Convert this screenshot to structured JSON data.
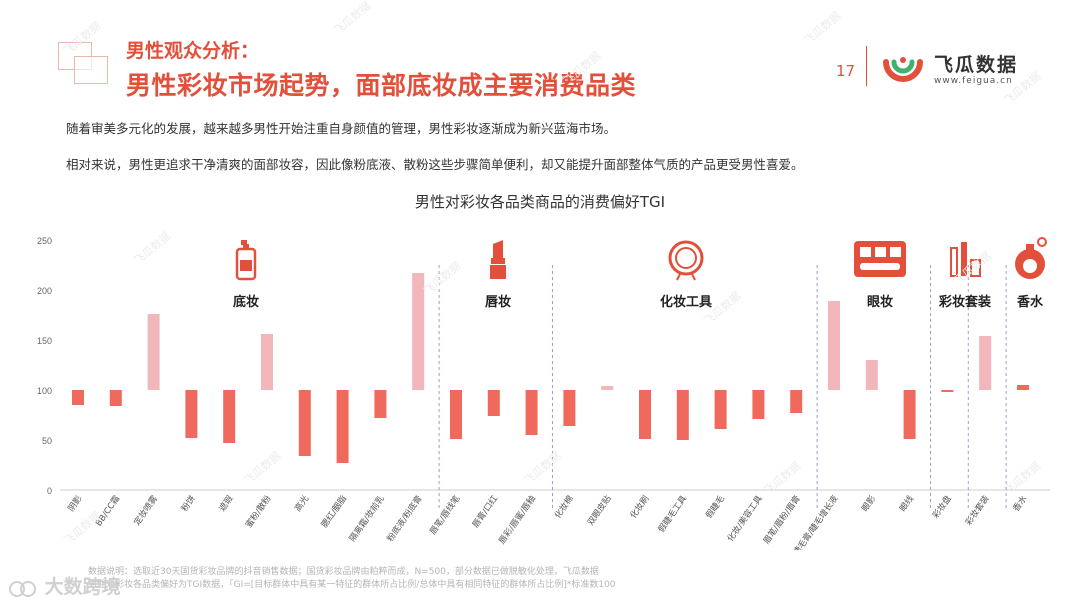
{
  "header": {
    "kicker": "男性观众分析：",
    "headline": "男性彩妆市场起势，面部底妆成主要消费品类",
    "page_number": "17",
    "brand_name": "飞瓜数据",
    "brand_url": "www.feigua.cn"
  },
  "intro": {
    "para1": "随着审美多元化的发展，越来越多男性开始注重自身颜值的管理，男性彩妆逐渐成为新兴蓝海市场。",
    "para2": "相对来说，男性更追求干净清爽的面部妆容，因此像粉底液、散粉这些步骤简单便利，却又能提升面部整体气质的产品更受男性喜爱。"
  },
  "chart_data": {
    "type": "bar",
    "title": "男性对彩妆各品类商品的消费偏好TGI",
    "ylim": [
      0,
      250
    ],
    "yticks": [
      0,
      50,
      100,
      150,
      200,
      250
    ],
    "baseline": 100,
    "categories": [
      "阴影",
      "BB/CC霜",
      "定妆喷雾",
      "粉饼",
      "遮瑕",
      "蜜粉/散粉",
      "高光",
      "腮红/胭脂",
      "隔离霜/妆前乳",
      "粉底液/粉底膏",
      "唇笔/唇线笔",
      "唇膏/口红",
      "唇彩/唇蜜/唇釉",
      "化妆棉",
      "双眼皮贴",
      "化妆刷",
      "假睫毛工具",
      "假睫毛",
      "化妆/美容工具",
      "眉笔/眉粉/眉膏",
      "睫毛膏/睫毛增长液",
      "眼影",
      "眼线",
      "彩妆盘",
      "彩妆套装",
      "香水"
    ],
    "values": [
      85,
      84,
      176,
      52,
      47,
      156,
      34,
      27,
      72,
      217,
      51,
      74,
      55,
      64,
      104,
      51,
      50,
      61,
      71,
      77,
      189,
      130,
      51,
      98,
      154,
      105
    ],
    "groups": [
      {
        "label": "底妆",
        "icon": "foundation-bottle-icon"
      },
      {
        "label": "唇妆",
        "icon": "lipstick-icon"
      },
      {
        "label": "化妆工具",
        "icon": "mirror-icon"
      },
      {
        "label": "眼妆",
        "icon": "eyeshadow-palette-icon"
      },
      {
        "label": "彩妆套装",
        "icon": "makeup-set-icon"
      },
      {
        "label": "香水",
        "icon": "perfume-icon"
      }
    ],
    "colors": {
      "below_baseline": "#ef6a5c",
      "above_baseline": "#f2b7bb",
      "near_baseline": "#ef6a5c",
      "separator": "#9aa3c4",
      "axis": "#cccccc"
    }
  },
  "footnote": {
    "line1": "数据说明：选取近30天国货彩妆品牌的抖音销售数据；国货彩妆品牌由粕粹而成，N=500，部分数据已做脱敏化处理，飞瓜数据",
    "line2": "男性对彩妆各品类偏好为TGI数据，「GI=[目标群体中具有某一特征的群体所占比例/总体中具有相同特征的群体所占比例]*标准数100"
  },
  "watermark": {
    "brand": "大数跨境",
    "tile_text": "飞瓜数据"
  }
}
